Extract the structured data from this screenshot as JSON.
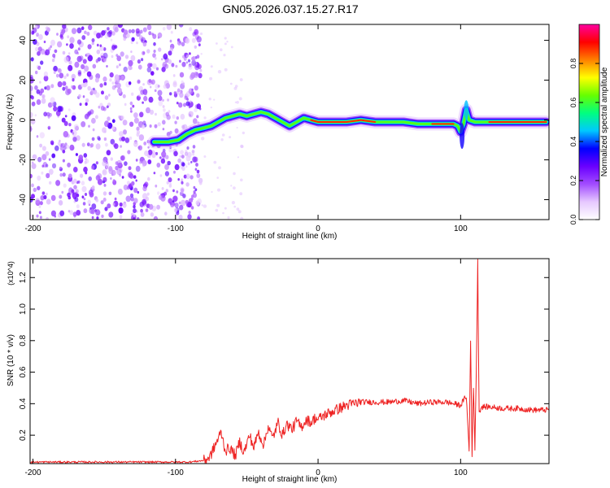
{
  "title": "GN05.2026.037.15.27.R17",
  "chart_data": [
    {
      "id": "spectrogram",
      "type": "heatmap",
      "title": "GN05.2026.037.15.27.R17",
      "xlabel": "Height of straight line (km)",
      "ylabel": "Frequency (Hz)",
      "xlim": [
        -202,
        162
      ],
      "ylim": [
        -50,
        48
      ],
      "xticks": [
        -200,
        -100,
        0,
        100
      ],
      "yticks": [
        -40,
        -20,
        0,
        20,
        40
      ],
      "colorbar": {
        "label": "Normalized spectral amplitude",
        "range": [
          0.0,
          1.0
        ],
        "ticks": [
          "0.0",
          "0.2",
          "0.4",
          "0.6",
          "0.8"
        ],
        "colors": [
          "#ffffff",
          "#e6c8ff",
          "#a24cff",
          "#6a00ff",
          "#0000ff",
          "#00c8ff",
          "#00ff80",
          "#66ff00",
          "#ffff00",
          "#ff8000",
          "#ff0000",
          "#ff00a0"
        ]
      },
      "noise_region_km": [
        -202,
        -82
      ],
      "ridge": {
        "description": "frequency centroid (Hz) vs height (km)",
        "x": [
          -115,
          -105,
          -98,
          -92,
          -86,
          -80,
          -75,
          -70,
          -65,
          -60,
          -55,
          -50,
          -45,
          -40,
          -35,
          -30,
          -25,
          -20,
          -15,
          -10,
          -5,
          0,
          10,
          20,
          30,
          40,
          50,
          60,
          70,
          80,
          90,
          95,
          98,
          100,
          102,
          104,
          106,
          110,
          120,
          130,
          140,
          150,
          160
        ],
        "y": [
          -11,
          -11,
          -10,
          -7,
          -5,
          -4,
          -3,
          -1,
          1,
          2,
          3,
          2,
          3,
          4,
          3,
          1,
          -1,
          -3,
          -1,
          1,
          0,
          -1,
          -1,
          -1,
          0,
          -1,
          -1,
          -1,
          -2,
          -2,
          -2,
          -2,
          -3,
          -6,
          -2,
          5,
          0,
          -1,
          -1,
          -1,
          -1,
          -1,
          -1
        ]
      }
    },
    {
      "id": "snr",
      "type": "line",
      "xlabel": "Height of straight line (km)",
      "ylabel": "SNR (10 * v/v)",
      "y_multiplier": "(x10^4)",
      "xlim": [
        -202,
        162
      ],
      "ylim": [
        0.02,
        1.32
      ],
      "xticks": [
        -200,
        -100,
        0,
        100
      ],
      "yticks": [
        0.2,
        0.4,
        0.6,
        0.8,
        1.0,
        1.2
      ],
      "yticklabels": [
        "0.2",
        "0.4",
        "0.6",
        "0.8",
        "1.0",
        "1.2"
      ],
      "color": "#ee2222",
      "series": [
        {
          "name": "SNR",
          "x": [
            -202,
            -150,
            -100,
            -90,
            -80,
            -76,
            -72,
            -68,
            -65,
            -62,
            -58,
            -55,
            -52,
            -48,
            -45,
            -42,
            -38,
            -35,
            -32,
            -28,
            -25,
            -22,
            -18,
            -15,
            -12,
            -8,
            -5,
            -2,
            0,
            5,
            10,
            15,
            20,
            25,
            30,
            40,
            50,
            60,
            70,
            80,
            90,
            95,
            100,
            104,
            106,
            107,
            108,
            109,
            110,
            111,
            112,
            113,
            115,
            120,
            130,
            140,
            150,
            162
          ],
          "y": [
            0.03,
            0.03,
            0.03,
            0.03,
            0.04,
            0.06,
            0.14,
            0.22,
            0.1,
            0.12,
            0.07,
            0.16,
            0.09,
            0.2,
            0.12,
            0.22,
            0.14,
            0.26,
            0.18,
            0.28,
            0.2,
            0.27,
            0.24,
            0.29,
            0.25,
            0.3,
            0.28,
            0.31,
            0.3,
            0.33,
            0.35,
            0.37,
            0.39,
            0.4,
            0.41,
            0.41,
            0.41,
            0.42,
            0.4,
            0.41,
            0.41,
            0.4,
            0.39,
            0.45,
            0.1,
            0.8,
            0.08,
            0.5,
            0.12,
            0.6,
            1.3,
            0.35,
            0.38,
            0.38,
            0.37,
            0.37,
            0.36,
            0.36
          ]
        }
      ]
    }
  ]
}
